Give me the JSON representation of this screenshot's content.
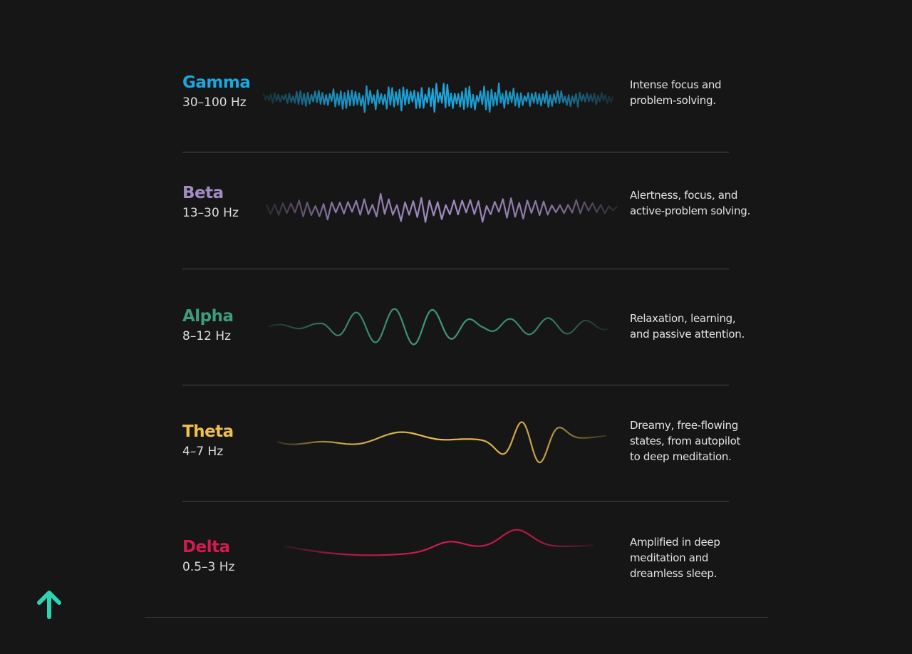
{
  "waves": [
    {
      "name": "Gamma",
      "range": "30–100 Hz",
      "description": "Intense focus and problem-solving.",
      "color": "#1ba8e0"
    },
    {
      "name": "Beta",
      "range": "13–30 Hz",
      "description": "Alertness, focus, and active-problem solving.",
      "color": "#a48bc4"
    },
    {
      "name": "Alpha",
      "range": "8–12 Hz",
      "description": "Relaxation, learning, and passive attention.",
      "color": "#3f9b7e"
    },
    {
      "name": "Theta",
      "range": "4–7 Hz",
      "description": "Dreamy, free-flowing states, from autopilot to deep meditation.",
      "color": "#efc04f"
    },
    {
      "name": "Delta",
      "range": "0.5–3 Hz",
      "description": "Amplified in deep meditation and dreamless sleep.",
      "color": "#d31b4f"
    }
  ],
  "logo": {
    "icon": "arrow-up-icon",
    "color": "#2ed3b4"
  }
}
